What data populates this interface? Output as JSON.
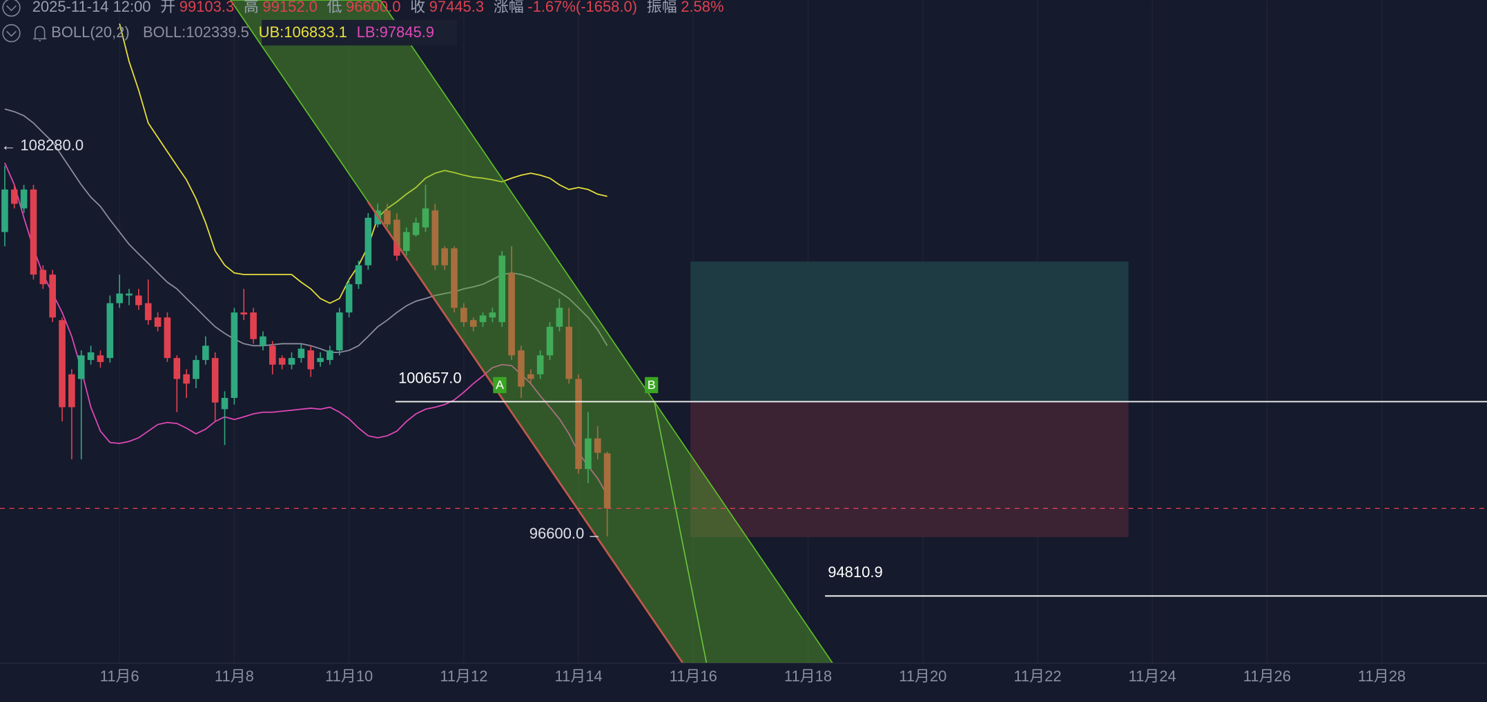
{
  "chart_data": {
    "type": "candlestick",
    "header": {
      "time": "2025-11-14 12:00",
      "fields": [
        {
          "label": "开",
          "value": "99103.3"
        },
        {
          "label": "高",
          "value": "99152.0"
        },
        {
          "label": "低",
          "value": "96600.0"
        },
        {
          "label": "收",
          "value": "97445.3"
        },
        {
          "label": "涨幅",
          "value": "-1.67%(-1658.0)"
        },
        {
          "label": "振幅",
          "value": "2.58%"
        }
      ],
      "indicator": "BOLL(20,2)"
    },
    "up_color": "#2fa97f",
    "down_color": "#e0414f",
    "open": [
      105760,
      107040,
      106470,
      107040,
      104620,
      104480,
      103110,
      101480,
      101340,
      101910,
      102050,
      101970,
      103620,
      103850,
      103850,
      103620,
      103190,
      103190,
      101970,
      101480,
      101340,
      101910,
      101970,
      100430,
      100770,
      103340,
      103340,
      102340,
      102340,
      101970,
      101770,
      101970,
      102200,
      101850,
      101910,
      102200,
      103340,
      104190,
      104760,
      105990,
      106410,
      106130,
      105190,
      105670,
      105900,
      106410,
      105270,
      105270,
      103480,
      103110,
      103050,
      103190,
      103050,
      104530,
      102200,
      101480,
      101480,
      102050,
      102910,
      102910,
      101340,
      98630,
      99550,
      99103.3
    ],
    "high": [
      107750,
      107180,
      107180,
      107180,
      104760,
      104620,
      103190,
      101630,
      102200,
      102340,
      102200,
      103850,
      104480,
      104050,
      104050,
      104330,
      103340,
      103340,
      102050,
      101630,
      102050,
      102620,
      102140,
      100970,
      103480,
      104050,
      103480,
      102770,
      102480,
      102050,
      102140,
      102400,
      102340,
      102140,
      102340,
      103480,
      104330,
      104900,
      106330,
      106610,
      106610,
      106330,
      105900,
      106190,
      107180,
      106610,
      105330,
      105330,
      103620,
      103190,
      103340,
      103480,
      105190,
      105330,
      102340,
      101630,
      102200,
      103050,
      103760,
      103480,
      101480,
      100340,
      99920,
      99152.0
    ],
    "low": [
      105330,
      106470,
      106330,
      104330,
      104050,
      103050,
      100060,
      98920,
      98920,
      101770,
      101680,
      101830,
      103480,
      103560,
      103420,
      102970,
      102770,
      101850,
      100340,
      100770,
      101060,
      101770,
      100060,
      99350,
      100570,
      103110,
      102400,
      102200,
      101480,
      101630,
      101630,
      101830,
      101400,
      101710,
      101770,
      102050,
      103190,
      104050,
      104620,
      105900,
      105900,
      104900,
      105050,
      105620,
      105760,
      104620,
      104620,
      103340,
      102910,
      102770,
      102910,
      103050,
      102910,
      101910,
      100770,
      101200,
      101340,
      101910,
      102770,
      101200,
      98490,
      98210,
      98920,
      96600.0
    ],
    "close": [
      107040,
      106610,
      107040,
      104480,
      104190,
      103190,
      100490,
      100490,
      102050,
      102140,
      101850,
      103620,
      103910,
      103910,
      103560,
      103110,
      102910,
      101970,
      101340,
      101200,
      101910,
      102340,
      100630,
      100770,
      103340,
      103280,
      102540,
      102620,
      101770,
      101770,
      101970,
      102250,
      101630,
      101970,
      102200,
      103340,
      104190,
      104760,
      106190,
      106410,
      105990,
      105050,
      105760,
      106040,
      106470,
      104760,
      104760,
      103480,
      103050,
      102910,
      103250,
      103340,
      105050,
      102050,
      101110,
      101340,
      102050,
      102910,
      103480,
      101340,
      98630,
      99550,
      99120,
      97445.3
    ],
    "series": [
      {
        "name": "UB:106833.1",
        "color": "#e8e03a",
        "values": [
          null,
          null,
          null,
          null,
          null,
          null,
          null,
          null,
          null,
          null,
          null,
          null,
          112030,
          110890,
          110030,
          109040,
          108610,
          108180,
          107750,
          107330,
          106760,
          106040,
          105190,
          104760,
          104530,
          104480,
          104480,
          104480,
          104480,
          104480,
          104480,
          104250,
          104050,
          103760,
          103620,
          103760,
          104330,
          104760,
          105330,
          106190,
          106470,
          106670,
          106900,
          107100,
          107380,
          107530,
          107610,
          107550,
          107470,
          107410,
          107380,
          107330,
          107270,
          107380,
          107470,
          107530,
          107470,
          107380,
          107180,
          107040,
          107100,
          107040,
          106900,
          106833.1
        ]
      },
      {
        "name": "BOLL:102339.5",
        "color": "#8e8e9e",
        "values": [
          109460,
          109380,
          109260,
          109040,
          108750,
          108470,
          108040,
          107610,
          107180,
          106810,
          106530,
          106130,
          105760,
          105390,
          105100,
          104820,
          104530,
          104250,
          104050,
          103760,
          103480,
          103190,
          102910,
          102710,
          102540,
          102400,
          102340,
          102340,
          102370,
          102400,
          102400,
          102400,
          102340,
          102250,
          102140,
          102140,
          102200,
          102340,
          102620,
          102910,
          103110,
          103340,
          103540,
          103680,
          103760,
          103850,
          103910,
          103960,
          104050,
          104110,
          104190,
          104330,
          104480,
          104530,
          104480,
          104390,
          104250,
          104110,
          103960,
          103760,
          103480,
          103190,
          102820,
          102339.5
        ]
      },
      {
        "name": "LB:97845.9",
        "color": "#e048b8",
        "values": [
          107840,
          107180,
          106190,
          105270,
          104480,
          103910,
          103340,
          102620,
          101630,
          100490,
          99770,
          99430,
          99400,
          99460,
          99570,
          99770,
          99970,
          100030,
          100000,
          99860,
          99690,
          99830,
          100060,
          100200,
          100120,
          100200,
          100290,
          100340,
          100340,
          100370,
          100400,
          100430,
          100460,
          100430,
          100490,
          100340,
          100140,
          99860,
          99630,
          99570,
          99630,
          99770,
          100060,
          100290,
          100430,
          100490,
          100570,
          100710,
          100940,
          101200,
          101430,
          101680,
          101770,
          101740,
          101480,
          101200,
          100830,
          100490,
          100140,
          99690,
          99120,
          98720,
          98350,
          97845.9
        ]
      }
    ],
    "xlim": [
      -0.5,
      155
    ],
    "xticks": [
      {
        "value": 12,
        "label": "11月6"
      },
      {
        "value": 24,
        "label": "11月8"
      },
      {
        "value": 36,
        "label": "11月10"
      },
      {
        "value": 48,
        "label": "11月12"
      },
      {
        "value": 60,
        "label": "11月14"
      },
      {
        "value": 72,
        "label": "11月16"
      },
      {
        "value": 84,
        "label": "11月18"
      },
      {
        "value": 96,
        "label": "11月20"
      },
      {
        "value": 108,
        "label": "11月22"
      },
      {
        "value": 120,
        "label": "11月24"
      },
      {
        "value": 132,
        "label": "11月26"
      },
      {
        "value": 144,
        "label": "11月28"
      }
    ],
    "ylim": [
      92790,
      112740
    ],
    "grid": true,
    "price_lines": [
      {
        "value": 100657.0,
        "label": "100657.0"
      },
      {
        "value": 94810.9,
        "label": "94810.9"
      }
    ],
    "price_labels": [
      {
        "value": 108280.0,
        "label": "← 108280.0"
      },
      {
        "value": 96600.0,
        "label": "96600.0"
      }
    ],
    "markers": [
      "A",
      "B"
    ]
  }
}
